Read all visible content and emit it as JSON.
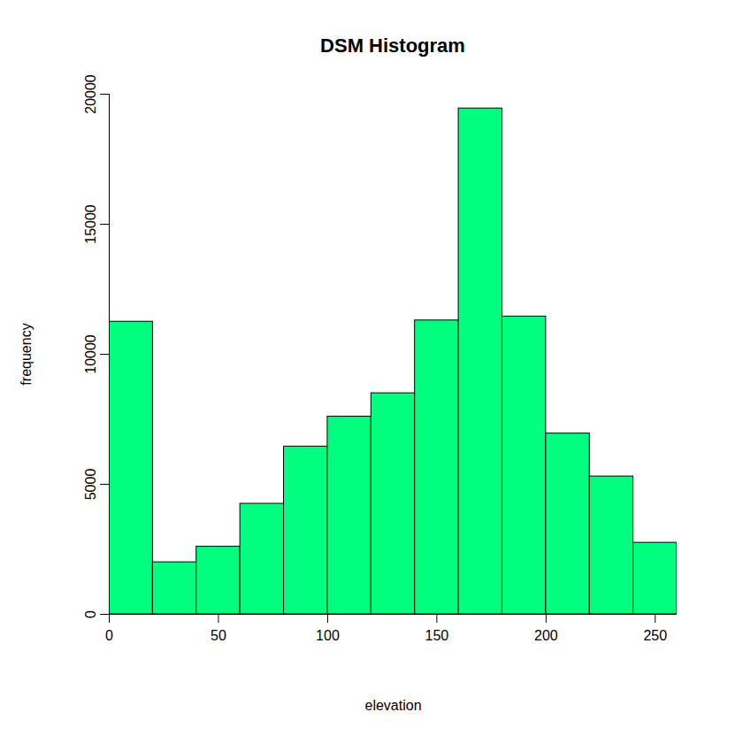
{
  "chart_data": {
    "type": "histogram",
    "title": "DSM Histogram",
    "x_label": "elevation",
    "y_label": "frequency",
    "bins": [
      0,
      20,
      40,
      60,
      80,
      100,
      120,
      140,
      160,
      180,
      200,
      220,
      240,
      260
    ],
    "counts": [
      11250,
      2000,
      2600,
      4250,
      6450,
      7600,
      8500,
      11300,
      19450,
      11450,
      6950,
      5300,
      2750
    ],
    "color": "#00ff7f",
    "xlim": [
      0,
      260
    ],
    "ylim": [
      0,
      20000
    ],
    "xticks": [
      0,
      50,
      100,
      150,
      200,
      250
    ],
    "yticks": [
      0,
      5000,
      10000,
      15000,
      20000
    ]
  }
}
